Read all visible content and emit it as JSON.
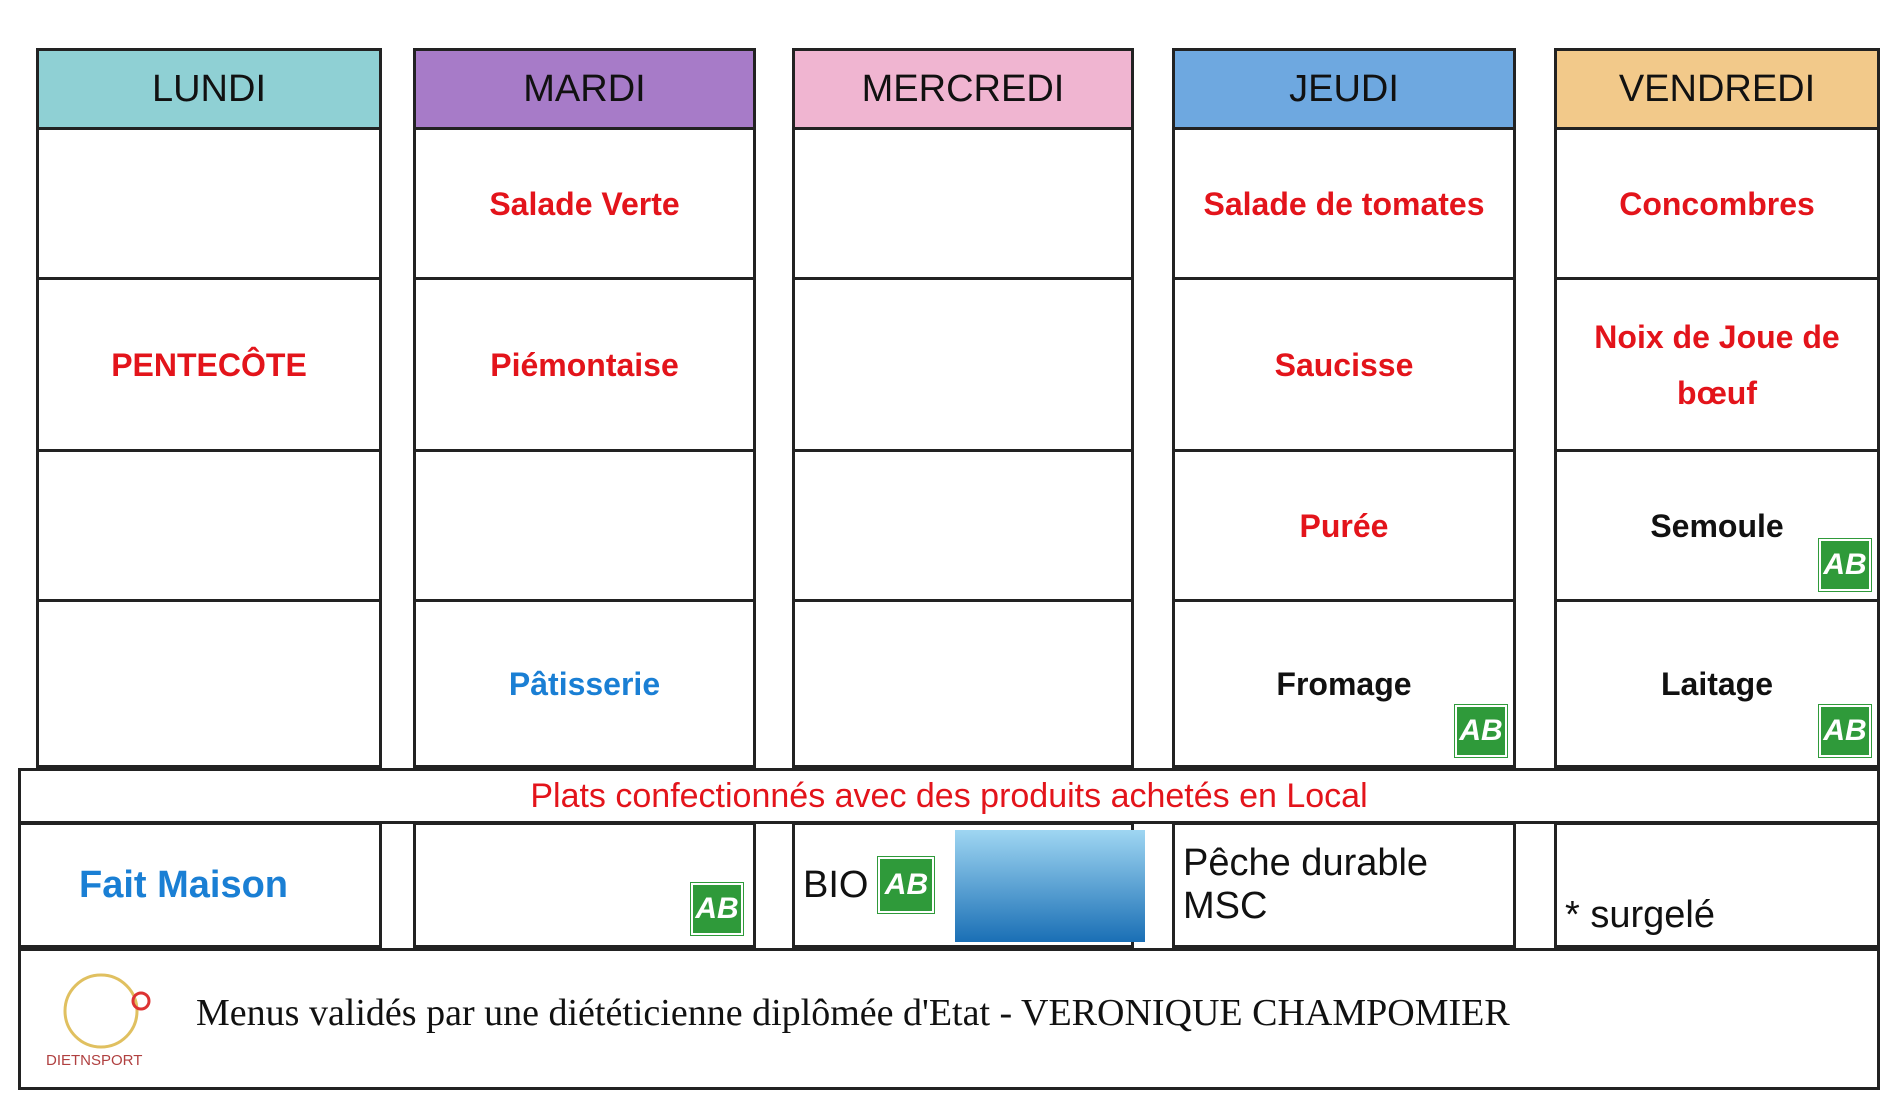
{
  "days": [
    {
      "name": "LUNDI",
      "color": "#8fd0d4",
      "items": [
        null,
        {
          "text": "PENTECÔTE",
          "color": "#e3141b"
        },
        null,
        null
      ]
    },
    {
      "name": "MARDI",
      "color": "#a77bc8",
      "items": [
        {
          "text": "Salade Verte",
          "color": "#e3141b"
        },
        {
          "text": "Piémontaise",
          "color": "#e3141b"
        },
        null,
        {
          "text": "Pâtisserie",
          "color": "#1a7fd4"
        }
      ]
    },
    {
      "name": "MERCREDI",
      "color": "#f0b5d1",
      "items": [
        null,
        null,
        null,
        null
      ]
    },
    {
      "name": "JEUDI",
      "color": "#6ea8e0",
      "items": [
        {
          "text": "Salade de tomates",
          "color": "#e3141b"
        },
        {
          "text": "Saucisse",
          "color": "#e3141b"
        },
        {
          "text": "Purée",
          "color": "#e3141b"
        },
        {
          "text": "Fromage",
          "color": "#111111",
          "organic": true
        }
      ]
    },
    {
      "name": "VENDREDI",
      "color": "#f2c98a",
      "items": [
        {
          "text": "Concombres",
          "color": "#e3141b"
        },
        {
          "text": "Noix de Joue de bœuf",
          "color": "#e3141b"
        },
        {
          "text": "Semoule",
          "color": "#111111",
          "organic": true
        },
        {
          "text": "Laitage",
          "color": "#111111",
          "organic": true
        }
      ]
    }
  ],
  "local_note": "Plats confectionnés avec des produits achetés en Local",
  "legend": [
    "Fait Maison",
    null,
    "BIO",
    "Pêche durable MSC",
    "* surgelé"
  ],
  "organic_badge": "AB",
  "footer": "Menus validés par une diététicienne diplômée d'Etat - VERONIQUE CHAMPOMIER",
  "logo": "DIETNSPORT"
}
